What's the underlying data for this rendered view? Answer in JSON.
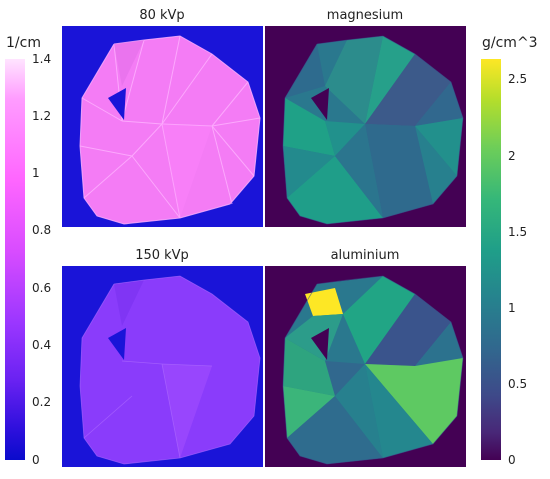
{
  "panels": [
    {
      "title": "80 kVp"
    },
    {
      "title": "magnesium"
    },
    {
      "title": "150 kVp"
    },
    {
      "title": "aluminium"
    }
  ],
  "colorbar_left": {
    "unit": "1/cm",
    "ticks": [
      "1.4",
      "1.2",
      "1",
      "0.8",
      "0.6",
      "0.4",
      "0.2",
      "0"
    ],
    "colors": [
      "#ffe2ff",
      "#ff6bff",
      "#2a00d6",
      "#0b0bcc"
    ]
  },
  "colorbar_right": {
    "unit": "g/cm^3",
    "ticks": [
      "2.5",
      "2",
      "1.5",
      "1",
      "0.5",
      "0"
    ],
    "colors": [
      "#fde725",
      "#35b779",
      "#21918c",
      "#31688e",
      "#440154"
    ]
  }
}
